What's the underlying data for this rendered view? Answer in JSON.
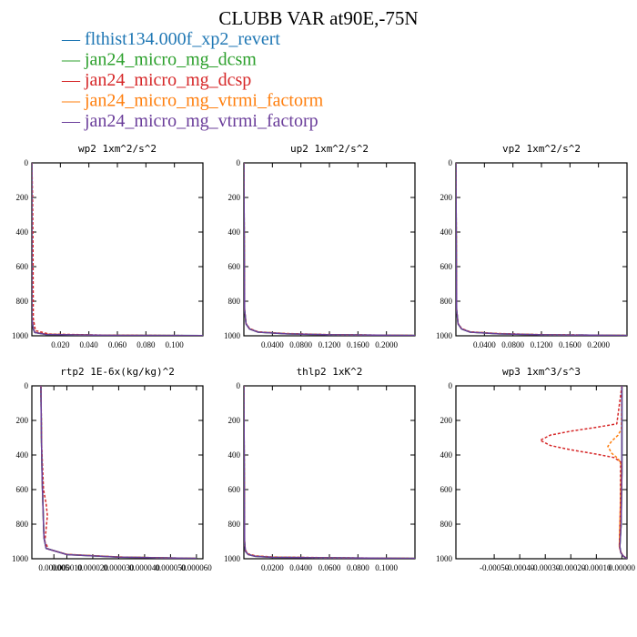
{
  "title": "CLUBB VAR at90E,-75N",
  "legend": [
    {
      "label": "flthist134.000f_xp2_revert",
      "color": "#1f77b4",
      "marker": "—"
    },
    {
      "label": "jan24_micro_mg_dcsm",
      "color": "#2ca02c",
      "marker": "—"
    },
    {
      "label": "jan24_micro_mg_dcsp",
      "color": "#d62728",
      "marker": "—"
    },
    {
      "label": "jan24_micro_mg_vtrmi_factorm",
      "color": "#ff7f0e",
      "marker": "—"
    },
    {
      "label": "jan24_micro_mg_vtrmi_factorp",
      "color": "#6a3d9a",
      "marker": "—"
    }
  ],
  "chart_data": [
    {
      "type": "line",
      "title": "wp2  1xm^2/s^2",
      "xlim": [
        0,
        0.12
      ],
      "ylim": [
        1000,
        0
      ],
      "xticks": [
        {
          "v": 0.02,
          "label": "0.020"
        },
        {
          "v": 0.04,
          "label": "0.040"
        },
        {
          "v": 0.06,
          "label": "0.060"
        },
        {
          "v": 0.08,
          "label": "0.080"
        },
        {
          "v": 0.1,
          "label": "0.100"
        }
      ],
      "yticks": [
        0,
        200,
        400,
        600,
        800,
        1000
      ],
      "series": [
        {
          "color": "#1f77b4",
          "dashed": false,
          "x": [
            0,
            0,
            0.001,
            0.002,
            0.01,
            0.05,
            0.12
          ],
          "y": [
            0,
            900,
            960,
            980,
            992,
            997,
            999
          ]
        },
        {
          "color": "#2ca02c",
          "dashed": false,
          "x": [
            0,
            0,
            0.001,
            0.002,
            0.01,
            0.05,
            0.12
          ],
          "y": [
            0,
            900,
            960,
            981,
            992,
            997,
            999
          ]
        },
        {
          "color": "#d62728",
          "dashed": true,
          "x": [
            0,
            0.0005,
            0.0008,
            0.001,
            0.0025,
            0.012,
            0.05,
            0.12
          ],
          "y": [
            0,
            200,
            500,
            900,
            970,
            990,
            996,
            999
          ]
        },
        {
          "color": "#ff7f0e",
          "dashed": true,
          "x": [
            0,
            0,
            0.001,
            0.002,
            0.01,
            0.05,
            0.12
          ],
          "y": [
            0,
            900,
            960,
            980,
            991,
            997,
            999
          ]
        },
        {
          "color": "#6a3d9a",
          "dashed": false,
          "x": [
            0,
            0,
            0.001,
            0.002,
            0.01,
            0.05,
            0.12
          ],
          "y": [
            0,
            900,
            960,
            981,
            992,
            997,
            999
          ]
        }
      ]
    },
    {
      "type": "line",
      "title": "up2  1xm^2/s^2",
      "xlim": [
        0,
        0.24
      ],
      "ylim": [
        1000,
        0
      ],
      "xticks": [
        {
          "v": 0.04,
          "label": "0.0400"
        },
        {
          "v": 0.08,
          "label": "0.0800"
        },
        {
          "v": 0.12,
          "label": "0.1200"
        },
        {
          "v": 0.16,
          "label": "0.1600"
        },
        {
          "v": 0.2,
          "label": "0.2000"
        }
      ],
      "yticks": [
        0,
        200,
        400,
        600,
        800,
        1000
      ],
      "series": [
        {
          "color": "#1f77b4",
          "dashed": false,
          "x": [
            0,
            0.001,
            0.003,
            0.008,
            0.02,
            0.06,
            0.12,
            0.24
          ],
          "y": [
            0,
            850,
            930,
            960,
            978,
            988,
            994,
            998
          ]
        },
        {
          "color": "#2ca02c",
          "dashed": false,
          "x": [
            0,
            0.001,
            0.003,
            0.008,
            0.02,
            0.06,
            0.12,
            0.24
          ],
          "y": [
            0,
            850,
            931,
            961,
            979,
            989,
            994,
            998
          ]
        },
        {
          "color": "#d62728",
          "dashed": true,
          "x": [
            0,
            0.001,
            0.003,
            0.008,
            0.02,
            0.06,
            0.12,
            0.24
          ],
          "y": [
            0,
            850,
            928,
            958,
            977,
            987,
            993,
            998
          ]
        },
        {
          "color": "#ff7f0e",
          "dashed": true,
          "x": [
            0,
            0.001,
            0.003,
            0.008,
            0.02,
            0.06,
            0.12,
            0.24
          ],
          "y": [
            0,
            850,
            930,
            960,
            978,
            988,
            994,
            998
          ]
        },
        {
          "color": "#6a3d9a",
          "dashed": false,
          "x": [
            0,
            0.001,
            0.003,
            0.008,
            0.02,
            0.06,
            0.12,
            0.24
          ],
          "y": [
            0,
            850,
            931,
            961,
            979,
            989,
            994,
            998
          ]
        }
      ]
    },
    {
      "type": "line",
      "title": "vp2  1xm^2/s^2",
      "xlim": [
        0,
        0.24
      ],
      "ylim": [
        1000,
        0
      ],
      "xticks": [
        {
          "v": 0.04,
          "label": "0.0400"
        },
        {
          "v": 0.08,
          "label": "0.0800"
        },
        {
          "v": 0.12,
          "label": "0.1200"
        },
        {
          "v": 0.16,
          "label": "0.1600"
        },
        {
          "v": 0.2,
          "label": "0.2000"
        }
      ],
      "yticks": [
        0,
        200,
        400,
        600,
        800,
        1000
      ],
      "series": [
        {
          "color": "#1f77b4",
          "dashed": false,
          "x": [
            0,
            0.001,
            0.003,
            0.008,
            0.02,
            0.06,
            0.12,
            0.24
          ],
          "y": [
            0,
            850,
            930,
            960,
            978,
            988,
            994,
            998
          ]
        },
        {
          "color": "#2ca02c",
          "dashed": false,
          "x": [
            0,
            0.001,
            0.003,
            0.008,
            0.02,
            0.06,
            0.12,
            0.24
          ],
          "y": [
            0,
            850,
            931,
            961,
            979,
            989,
            994,
            998
          ]
        },
        {
          "color": "#d62728",
          "dashed": true,
          "x": [
            0,
            0.001,
            0.003,
            0.008,
            0.02,
            0.06,
            0.12,
            0.24
          ],
          "y": [
            0,
            850,
            928,
            958,
            977,
            987,
            993,
            998
          ]
        },
        {
          "color": "#ff7f0e",
          "dashed": true,
          "x": [
            0,
            0.001,
            0.003,
            0.008,
            0.02,
            0.06,
            0.12,
            0.24
          ],
          "y": [
            0,
            850,
            930,
            960,
            978,
            988,
            994,
            998
          ]
        },
        {
          "color": "#6a3d9a",
          "dashed": false,
          "x": [
            0,
            0.001,
            0.003,
            0.008,
            0.02,
            0.06,
            0.12,
            0.24
          ],
          "y": [
            0,
            850,
            931,
            961,
            979,
            989,
            994,
            998
          ]
        }
      ]
    },
    {
      "type": "line",
      "title": "rtp2  1E-6x(kg/kg)^2",
      "xlim": [
        -3.5e-06,
        6.25e-05
      ],
      "ylim": [
        1000,
        0
      ],
      "xticks": [
        {
          "v": 5e-06,
          "label": "0.000005"
        },
        {
          "v": 1e-05,
          "label": "0.000010"
        },
        {
          "v": 2e-05,
          "label": "0.000020"
        },
        {
          "v": 3e-05,
          "label": "0.000030"
        },
        {
          "v": 4e-05,
          "label": "0.000040"
        },
        {
          "v": 5e-05,
          "label": "0.000050"
        },
        {
          "v": 6e-05,
          "label": "0.000060"
        }
      ],
      "yticks": [
        0,
        200,
        400,
        600,
        800,
        1000
      ],
      "series": [
        {
          "color": "#1f77b4",
          "dashed": false,
          "x": [
            0,
            2e-07,
            5e-07,
            8e-07,
            1e-06,
            1.2e-06,
            2e-06,
            1e-05,
            3e-05,
            6e-05
          ],
          "y": [
            0,
            300,
            550,
            700,
            800,
            880,
            940,
            975,
            990,
            998
          ]
        },
        {
          "color": "#2ca02c",
          "dashed": false,
          "x": [
            0,
            2e-07,
            5e-07,
            8e-07,
            1e-06,
            1.2e-06,
            2e-06,
            1e-05,
            3e-05,
            6e-05
          ],
          "y": [
            0,
            300,
            550,
            700,
            800,
            880,
            940,
            976,
            991,
            998
          ]
        },
        {
          "color": "#d62728",
          "dashed": true,
          "x": [
            0,
            3e-07,
            1e-06,
            2e-06,
            2.5e-06,
            2e-06,
            1.5e-06,
            3e-06,
            1e-05,
            3e-05,
            6e-05
          ],
          "y": [
            0,
            350,
            600,
            680,
            750,
            830,
            900,
            945,
            975,
            990,
            998
          ]
        },
        {
          "color": "#ff7f0e",
          "dashed": true,
          "x": [
            0,
            2e-07,
            5e-07,
            8e-07,
            1e-06,
            1.2e-06,
            2e-06,
            1e-05,
            3e-05,
            6e-05
          ],
          "y": [
            0,
            300,
            550,
            700,
            800,
            880,
            940,
            975,
            990,
            998
          ]
        },
        {
          "color": "#6a3d9a",
          "dashed": false,
          "x": [
            0,
            2e-07,
            5e-07,
            8e-07,
            1e-06,
            1.2e-06,
            2e-06,
            1e-05,
            3e-05,
            6e-05
          ],
          "y": [
            0,
            300,
            550,
            700,
            800,
            880,
            940,
            976,
            991,
            998
          ]
        }
      ]
    },
    {
      "type": "line",
      "title": "thlp2  1xK^2",
      "xlim": [
        0,
        0.12
      ],
      "ylim": [
        1000,
        0
      ],
      "xticks": [
        {
          "v": 0.02,
          "label": "0.0200"
        },
        {
          "v": 0.04,
          "label": "0.0400"
        },
        {
          "v": 0.06,
          "label": "0.0600"
        },
        {
          "v": 0.08,
          "label": "0.0800"
        },
        {
          "v": 0.1,
          "label": "0.1000"
        }
      ],
      "yticks": [
        0,
        200,
        400,
        600,
        800,
        1000
      ],
      "series": [
        {
          "color": "#1f77b4",
          "dashed": false,
          "x": [
            0,
            0.0005,
            0.001,
            0.003,
            0.008,
            0.02,
            0.06,
            0.12
          ],
          "y": [
            0,
            900,
            955,
            975,
            985,
            991,
            995,
            998
          ]
        },
        {
          "color": "#2ca02c",
          "dashed": false,
          "x": [
            0,
            0.0005,
            0.001,
            0.003,
            0.008,
            0.02,
            0.06,
            0.12
          ],
          "y": [
            0,
            900,
            956,
            976,
            986,
            992,
            995,
            998
          ]
        },
        {
          "color": "#d62728",
          "dashed": true,
          "x": [
            0,
            0.0005,
            0.001,
            0.003,
            0.008,
            0.02,
            0.06,
            0.12
          ],
          "y": [
            0,
            900,
            950,
            972,
            983,
            990,
            994,
            998
          ]
        },
        {
          "color": "#ff7f0e",
          "dashed": true,
          "x": [
            0,
            0.0005,
            0.001,
            0.003,
            0.008,
            0.02,
            0.06,
            0.12
          ],
          "y": [
            0,
            900,
            955,
            975,
            985,
            991,
            995,
            998
          ]
        },
        {
          "color": "#6a3d9a",
          "dashed": false,
          "x": [
            0,
            0.0005,
            0.001,
            0.003,
            0.008,
            0.02,
            0.06,
            0.12
          ],
          "y": [
            0,
            900,
            956,
            976,
            986,
            992,
            995,
            998
          ]
        }
      ]
    },
    {
      "type": "line",
      "title": "wp3  1xm^3/s^3",
      "xlim": [
        -0.00065,
        2e-05
      ],
      "ylim": [
        1000,
        0
      ],
      "xticks": [
        {
          "v": -0.0005,
          "label": "-0.00050"
        },
        {
          "v": -0.0004,
          "label": "-0.00040"
        },
        {
          "v": -0.0003,
          "label": "-0.00030"
        },
        {
          "v": -0.0002,
          "label": "-0.00020"
        },
        {
          "v": -0.0001,
          "label": "-0.00010"
        },
        {
          "v": 0,
          "label": "0.00000"
        }
      ],
      "yticks": [
        0,
        200,
        400,
        600,
        800,
        1000
      ],
      "series": [
        {
          "color": "#1f77b4",
          "dashed": false,
          "x": [
            0,
            0,
            0,
            -3e-06,
            -8e-06,
            -4e-06,
            6e-06,
            2e-05
          ],
          "y": [
            0,
            300,
            500,
            800,
            930,
            965,
            985,
            998
          ]
        },
        {
          "color": "#2ca02c",
          "dashed": false,
          "x": [
            0,
            0,
            0,
            -3e-06,
            -8e-06,
            -4e-06,
            6e-06,
            2e-05
          ],
          "y": [
            0,
            300,
            500,
            800,
            931,
            966,
            986,
            998
          ]
        },
        {
          "color": "#d62728",
          "dashed": true,
          "x": [
            0,
            -2e-05,
            -0.0001,
            -0.0002,
            -0.00028,
            -0.00032,
            -0.00028,
            -0.0002,
            -0.0001,
            -3e-05,
            -5e-06,
            -6e-06,
            -1e-05,
            -5e-06,
            6e-06,
            2e-05
          ],
          "y": [
            0,
            220,
            240,
            262,
            285,
            315,
            345,
            370,
            395,
            415,
            440,
            700,
            930,
            960,
            985,
            998
          ]
        },
        {
          "color": "#ff7f0e",
          "dashed": true,
          "x": [
            0,
            -2e-06,
            -1.5e-05,
            -4e-05,
            -5.5e-05,
            -4e-05,
            -1.5e-05,
            -2e-06,
            -6e-06,
            -1e-05,
            -4e-06,
            6e-06,
            2e-05
          ],
          "y": [
            0,
            250,
            285,
            320,
            350,
            390,
            420,
            460,
            700,
            930,
            965,
            985,
            998
          ]
        },
        {
          "color": "#6a3d9a",
          "dashed": false,
          "x": [
            0,
            0,
            0,
            -3e-06,
            -8e-06,
            -4e-06,
            6e-06,
            2e-05
          ],
          "y": [
            0,
            300,
            500,
            800,
            931,
            966,
            986,
            998
          ]
        }
      ]
    }
  ]
}
